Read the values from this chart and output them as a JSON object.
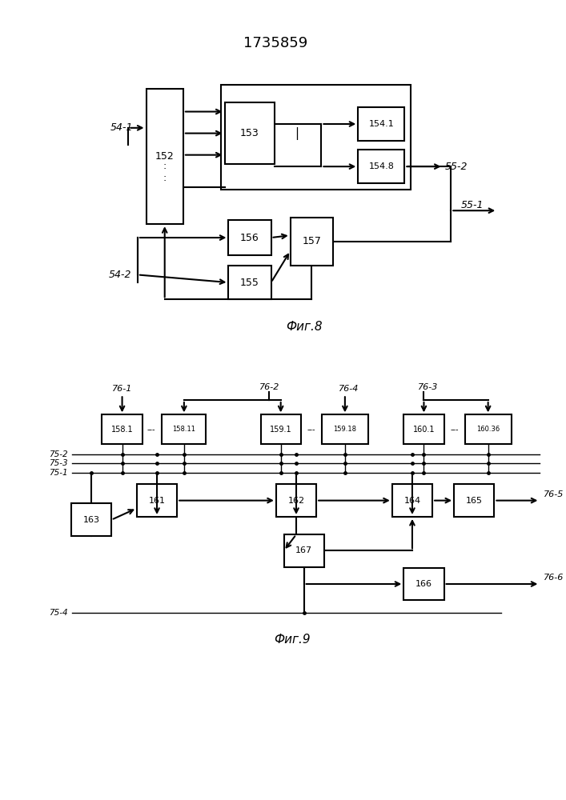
{
  "title": "1735859",
  "fig8_caption": "Фиг.8",
  "fig9_caption": "Фиг.9",
  "background_color": "#ffffff",
  "line_color": "#000000",
  "box_color": "#ffffff",
  "box_edge_color": "#000000"
}
